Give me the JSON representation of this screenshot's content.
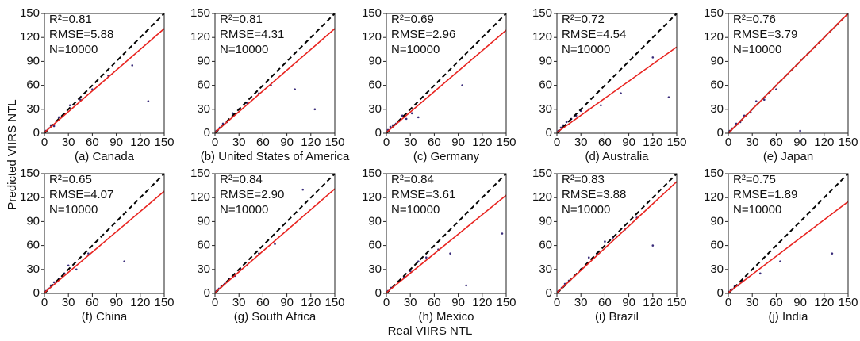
{
  "xlabel": "Real VIIRS NTL",
  "ylabel": "Predicted VIIRS NTL",
  "chart_data": [
    {
      "type": "scatter",
      "title": "(a) Canada",
      "annotations": [
        "R²=0.81",
        "RMSE=5.88",
        "N=10000"
      ],
      "color": "#3a2c7a",
      "identity_line": true,
      "fit": {
        "x": [
          0,
          150
        ],
        "y": [
          1,
          131
        ]
      },
      "fit_color": "#e8231f",
      "xlim": [
        0,
        150
      ],
      "ylim": [
        0,
        150
      ],
      "xticks": [
        0,
        30,
        60,
        90,
        120,
        150
      ],
      "yticks": [
        0,
        30,
        60,
        90,
        120,
        150
      ],
      "x": [
        2,
        5,
        8,
        12,
        18,
        25,
        32,
        45,
        60,
        80,
        110,
        130
      ],
      "y": [
        3,
        6,
        10,
        9,
        20,
        24,
        35,
        42,
        55,
        72,
        85,
        40
      ]
    },
    {
      "type": "scatter",
      "title": "(b) United States of America",
      "annotations": [
        "R²=0.81",
        "RMSE=4.31",
        "N=10000"
      ],
      "color": "#3a2c7a",
      "identity_line": true,
      "fit": {
        "x": [
          0,
          150
        ],
        "y": [
          1,
          131
        ]
      },
      "fit_color": "#e8231f",
      "xlim": [
        0,
        150
      ],
      "ylim": [
        0,
        150
      ],
      "xticks": [
        0,
        30,
        60,
        90,
        120,
        150
      ],
      "yticks": [
        0,
        30,
        60,
        90,
        120,
        150
      ],
      "x": [
        2,
        6,
        10,
        15,
        22,
        30,
        40,
        55,
        70,
        100,
        125
      ],
      "y": [
        3,
        7,
        12,
        14,
        25,
        30,
        38,
        50,
        60,
        55,
        30
      ]
    },
    {
      "type": "scatter",
      "title": "(c) Germany",
      "annotations": [
        "R²=0.69",
        "RMSE=2.96",
        "N=10000"
      ],
      "color": "#3a2c7a",
      "identity_line": true,
      "fit": {
        "x": [
          0,
          150
        ],
        "y": [
          1,
          129
        ]
      },
      "fit_color": "#e8231f",
      "xlim": [
        0,
        150
      ],
      "ylim": [
        0,
        150
      ],
      "xticks": [
        0,
        30,
        60,
        90,
        120,
        150
      ],
      "yticks": [
        0,
        30,
        60,
        90,
        120,
        150
      ],
      "x": [
        2,
        5,
        8,
        12,
        16,
        20,
        25,
        32,
        40,
        95
      ],
      "y": [
        4,
        8,
        10,
        12,
        15,
        22,
        18,
        25,
        20,
        60
      ]
    },
    {
      "type": "scatter",
      "title": "(d) Australia",
      "annotations": [
        "R²=0.72",
        "RMSE=4.54",
        "N=10000"
      ],
      "color": "#3a2c7a",
      "identity_line": true,
      "fit": {
        "x": [
          0,
          150
        ],
        "y": [
          1,
          108
        ]
      },
      "fit_color": "#e8231f",
      "xlim": [
        0,
        150
      ],
      "ylim": [
        0,
        150
      ],
      "xticks": [
        0,
        30,
        60,
        90,
        120,
        150
      ],
      "yticks": [
        0,
        30,
        60,
        90,
        120,
        150
      ],
      "x": [
        2,
        5,
        8,
        12,
        18,
        24,
        30,
        40,
        55,
        80,
        120,
        140
      ],
      "y": [
        3,
        7,
        10,
        14,
        18,
        22,
        28,
        30,
        35,
        50,
        95,
        45
      ]
    },
    {
      "type": "scatter",
      "title": "(e) Japan",
      "annotations": [
        "R²=0.76",
        "RMSE=3.79",
        "N=10000"
      ],
      "color": "#3a2c7a",
      "identity_line": true,
      "fit": {
        "x": [
          0,
          150
        ],
        "y": [
          0,
          150
        ]
      },
      "fit_color": "#e8231f",
      "xlim": [
        0,
        150
      ],
      "ylim": [
        0,
        150
      ],
      "xticks": [
        0,
        30,
        60,
        90,
        120,
        150
      ],
      "yticks": [
        0,
        30,
        60,
        90,
        120,
        150
      ],
      "x": [
        2,
        5,
        10,
        15,
        20,
        28,
        35,
        45,
        60,
        90
      ],
      "y": [
        3,
        6,
        12,
        14,
        22,
        26,
        40,
        42,
        55,
        3
      ]
    },
    {
      "type": "scatter",
      "title": "(f) China",
      "annotations": [
        "R²=0.65",
        "RMSE=4.07",
        "N=10000"
      ],
      "color": "#3a2c7a",
      "identity_line": true,
      "fit": {
        "x": [
          0,
          150
        ],
        "y": [
          1,
          128
        ]
      },
      "fit_color": "#e8231f",
      "xlim": [
        0,
        150
      ],
      "ylim": [
        0,
        150
      ],
      "xticks": [
        0,
        30,
        60,
        90,
        120,
        150
      ],
      "yticks": [
        0,
        30,
        60,
        90,
        120,
        150
      ],
      "x": [
        2,
        5,
        8,
        12,
        18,
        25,
        30,
        40,
        55,
        100
      ],
      "y": [
        3,
        6,
        10,
        14,
        18,
        25,
        35,
        30,
        50,
        40
      ]
    },
    {
      "type": "scatter",
      "title": "(g) South Africa",
      "annotations": [
        "R²=0.84",
        "RMSE=2.90",
        "N=10000"
      ],
      "color": "#3a2c7a",
      "identity_line": true,
      "fit": {
        "x": [
          0,
          150
        ],
        "y": [
          1,
          131
        ]
      },
      "fit_color": "#e8231f",
      "xlim": [
        0,
        150
      ],
      "ylim": [
        0,
        150
      ],
      "xticks": [
        0,
        30,
        60,
        90,
        120,
        150
      ],
      "yticks": [
        0,
        30,
        60,
        90,
        120,
        150
      ],
      "x": [
        2,
        5,
        8,
        12,
        18,
        25,
        32,
        40,
        55,
        75,
        110
      ],
      "y": [
        3,
        6,
        9,
        12,
        18,
        22,
        30,
        35,
        50,
        62,
        130
      ]
    },
    {
      "type": "scatter",
      "title": "(h) Mexico",
      "annotations": [
        "R²=0.84",
        "RMSE=3.61",
        "N=10000"
      ],
      "color": "#3a2c7a",
      "identity_line": true,
      "fit": {
        "x": [
          0,
          150
        ],
        "y": [
          1,
          123
        ]
      },
      "fit_color": "#e8231f",
      "xlim": [
        0,
        150
      ],
      "ylim": [
        0,
        150
      ],
      "xticks": [
        0,
        30,
        60,
        90,
        120,
        150
      ],
      "yticks": [
        0,
        30,
        60,
        90,
        120,
        150
      ],
      "x": [
        2,
        6,
        10,
        15,
        22,
        30,
        40,
        50,
        65,
        80,
        100,
        145
      ],
      "y": [
        3,
        7,
        10,
        15,
        20,
        28,
        40,
        45,
        55,
        50,
        10,
        75
      ]
    },
    {
      "type": "scatter",
      "title": "(i) Brazil",
      "annotations": [
        "R²=0.83",
        "RMSE=3.88",
        "N=10000"
      ],
      "color": "#3a2c7a",
      "identity_line": true,
      "fit": {
        "x": [
          0,
          150
        ],
        "y": [
          1,
          140
        ]
      },
      "fit_color": "#e8231f",
      "xlim": [
        0,
        150
      ],
      "ylim": [
        0,
        150
      ],
      "xticks": [
        0,
        30,
        60,
        90,
        120,
        150
      ],
      "yticks": [
        0,
        30,
        60,
        90,
        120,
        150
      ],
      "x": [
        2,
        6,
        10,
        15,
        22,
        30,
        40,
        50,
        60,
        70,
        85,
        100,
        120
      ],
      "y": [
        3,
        7,
        12,
        16,
        22,
        30,
        45,
        50,
        65,
        70,
        80,
        95,
        60
      ]
    },
    {
      "type": "scatter",
      "title": "(j) India",
      "annotations": [
        "R²=0.75",
        "RMSE=1.89",
        "N=10000"
      ],
      "color": "#3a2c7a",
      "identity_line": true,
      "fit": {
        "x": [
          0,
          150
        ],
        "y": [
          1,
          115
        ]
      },
      "fit_color": "#e8231f",
      "xlim": [
        0,
        150
      ],
      "ylim": [
        0,
        150
      ],
      "xticks": [
        0,
        30,
        60,
        90,
        120,
        150
      ],
      "yticks": [
        0,
        30,
        60,
        90,
        120,
        150
      ],
      "x": [
        1,
        3,
        5,
        8,
        12,
        18,
        25,
        40,
        65,
        130
      ],
      "y": [
        2,
        4,
        5,
        9,
        10,
        15,
        20,
        25,
        40,
        50
      ]
    }
  ]
}
